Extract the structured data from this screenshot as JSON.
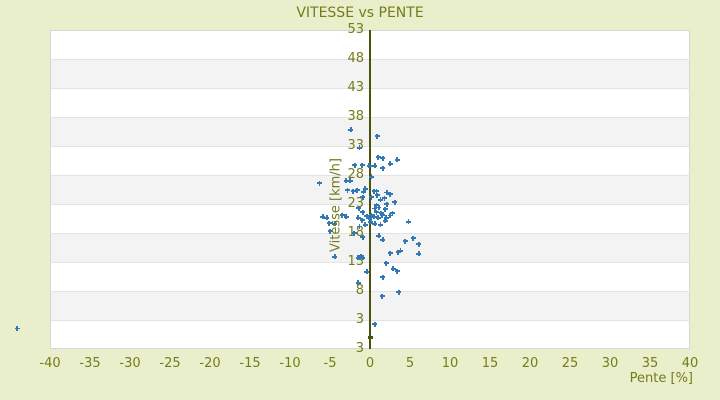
{
  "title": "VITESSE vs PENTE",
  "chart_data": {
    "type": "scatter",
    "title": "VITESSE vs PENTE",
    "xlabel": "Pente [%]",
    "ylabel": "Vitesse [km/h]",
    "xlim": [
      -40,
      40
    ],
    "ylim": [
      -2,
      53
    ],
    "x_ticks": [
      -40,
      -35,
      -30,
      -25,
      -20,
      -15,
      -10,
      -5,
      0,
      5,
      10,
      15,
      20,
      25,
      30,
      35,
      40
    ],
    "y_ticks": [
      53,
      48,
      43,
      38,
      33,
      28,
      23,
      18,
      13,
      8,
      3
    ],
    "y_axis_bottom_edge_label": "3",
    "grid": "horizontal bands, alternating light/dark every 5 units",
    "legend": "none",
    "marker_style": "plus",
    "zero_axis_line_x": 0,
    "origin_tick_y": 0,
    "colors": {
      "background": "#e9eecb",
      "text": "#757c1a",
      "band_light": "#ffffff",
      "band_dark": "#f3f3f3",
      "plot_border": "#d7d7d7",
      "gridline": "#e3e3e3",
      "zero_line": "#4a530c",
      "marker": "#3378b5"
    },
    "points": [
      [
        -44.1,
        1.5
      ],
      [
        -2.4,
        35.8
      ],
      [
        0.9,
        34.7
      ],
      [
        -1.3,
        32.7
      ],
      [
        1.0,
        31.1
      ],
      [
        1.6,
        30.9
      ],
      [
        3.4,
        30.6
      ],
      [
        -1.9,
        29.7
      ],
      [
        -1.0,
        29.7
      ],
      [
        -0.1,
        29.6
      ],
      [
        0.6,
        29.6
      ],
      [
        1.6,
        29.2
      ],
      [
        2.5,
        29.9
      ],
      [
        -6.3,
        26.6
      ],
      [
        -3.0,
        27.0
      ],
      [
        -2.5,
        27.0
      ],
      [
        0.2,
        27.7
      ],
      [
        -2.8,
        25.4
      ],
      [
        -2.1,
        25.2
      ],
      [
        -1.6,
        25.4
      ],
      [
        -0.6,
        25.6
      ],
      [
        -0.8,
        25.1
      ],
      [
        0.5,
        25.2
      ],
      [
        0.8,
        25.2
      ],
      [
        2.1,
        25.0
      ],
      [
        -0.9,
        24.2
      ],
      [
        0.2,
        24.2
      ],
      [
        0.9,
        24.5
      ],
      [
        2.5,
        24.7
      ],
      [
        1.8,
        24.0
      ],
      [
        1.3,
        23.7
      ],
      [
        2.1,
        23.0
      ],
      [
        3.1,
        23.3
      ],
      [
        0.8,
        22.8
      ],
      [
        0.6,
        22.2
      ],
      [
        1.1,
        22.4
      ],
      [
        -1.4,
        22.3
      ],
      [
        -0.9,
        21.6
      ],
      [
        0.8,
        21.6
      ],
      [
        1.4,
        21.4
      ],
      [
        1.9,
        22.1
      ],
      [
        -5.9,
        20.8
      ],
      [
        -5.4,
        20.6
      ],
      [
        -5.1,
        19.7
      ],
      [
        -4.4,
        19.6
      ],
      [
        -3.5,
        21.1
      ],
      [
        -3.0,
        20.8
      ],
      [
        -1.5,
        20.6
      ],
      [
        -1.0,
        20.2
      ],
      [
        -0.4,
        20.9
      ],
      [
        -0.1,
        20.6
      ],
      [
        0.2,
        21.1
      ],
      [
        0.5,
        20.8
      ],
      [
        1.0,
        20.6
      ],
      [
        1.5,
        21.1
      ],
      [
        2.0,
        20.6
      ],
      [
        2.5,
        21.0
      ],
      [
        0.1,
        19.9
      ],
      [
        0.6,
        19.6
      ],
      [
        -0.6,
        19.4
      ],
      [
        -1.3,
        19.1
      ],
      [
        1.3,
        19.4
      ],
      [
        1.9,
        20.1
      ],
      [
        2.8,
        21.4
      ],
      [
        4.8,
        19.9
      ],
      [
        -5.0,
        18.3
      ],
      [
        -2.0,
        18.0
      ],
      [
        -0.9,
        17.3
      ],
      [
        1.1,
        17.5
      ],
      [
        1.6,
        16.8
      ],
      [
        5.4,
        17.1
      ],
      [
        4.4,
        16.6
      ],
      [
        6.1,
        16.1
      ],
      [
        3.8,
        14.9
      ],
      [
        6.1,
        14.4
      ],
      [
        2.5,
        14.5
      ],
      [
        3.5,
        14.7
      ],
      [
        -4.4,
        13.9
      ],
      [
        -1.5,
        13.7
      ],
      [
        -1.1,
        14.0
      ],
      [
        -0.9,
        13.7
      ],
      [
        2.0,
        12.8
      ],
      [
        2.9,
        11.8
      ],
      [
        3.4,
        11.4
      ],
      [
        -0.4,
        11.3
      ],
      [
        1.6,
        10.4
      ],
      [
        -1.5,
        9.4
      ],
      [
        3.6,
        7.8
      ],
      [
        1.5,
        7.1
      ],
      [
        0.6,
        2.3
      ]
    ]
  }
}
